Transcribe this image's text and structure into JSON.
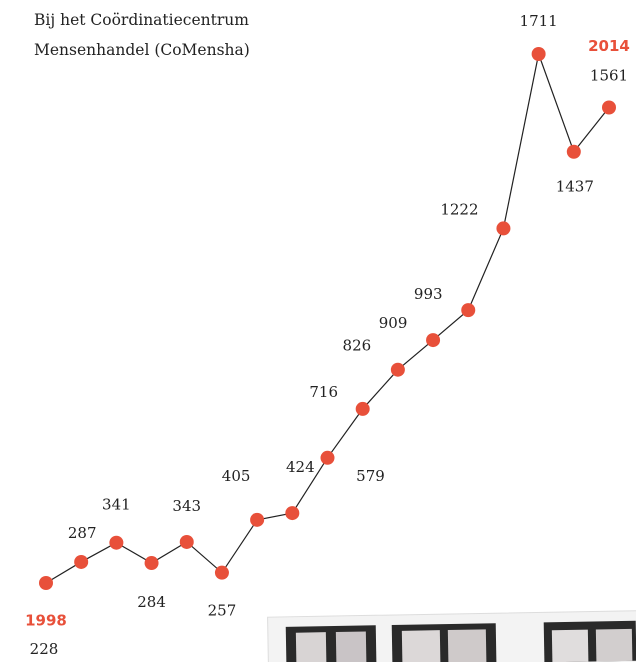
{
  "chart_data": {
    "type": "line",
    "title": [
      "Bij het Coördinatiecentrum",
      "Mensenhandel (CoMensha)"
    ],
    "categories": [
      "1998",
      null,
      null,
      null,
      null,
      null,
      null,
      null,
      null,
      null,
      null,
      null,
      null,
      null,
      null,
      null,
      "2014"
    ],
    "series": [
      {
        "color": "#e8503a",
        "values": [
          228,
          287,
          341,
          284,
          343,
          257,
          405,
          424,
          579,
          716,
          826,
          909,
          993,
          1222,
          1711,
          1437,
          1561
        ]
      }
    ]
  }
}
